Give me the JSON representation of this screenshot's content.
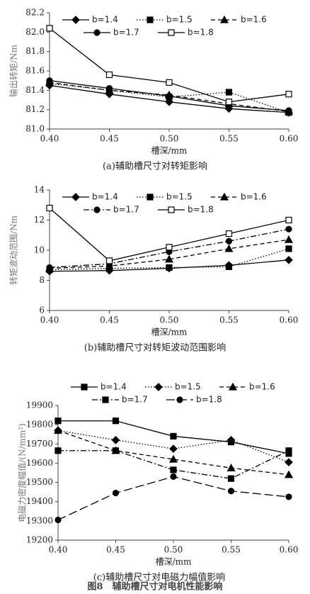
{
  "caption": "图8　辅助槽尺寸对电机性能影响",
  "chart_data": [
    {
      "type": "line",
      "caption": "(a)辅助槽尺寸对转矩影响",
      "xlabel": "槽深/mm",
      "ylabel": "输出转矩/Nm",
      "categories": [
        "0.40",
        "0.45",
        "0.50",
        "0.55",
        "0.60"
      ],
      "ylim": [
        81.0,
        82.2
      ],
      "yticks": [
        {
          "value": 81.0,
          "label": "81.0"
        },
        81.2,
        81.4,
        81.6,
        81.8,
        {
          "value": 82.0,
          "label": "82.0"
        },
        82.2
      ],
      "legend": "top",
      "series": [
        {
          "name": "b=1.4",
          "color": "#000000",
          "dash": "solid",
          "marker": "diamond",
          "values": [
            81.45,
            81.36,
            81.28,
            81.21,
            81.17
          ]
        },
        {
          "name": "b=1.5",
          "color": "#000000",
          "dash": "dotted",
          "marker": "square",
          "values": [
            81.47,
            81.4,
            81.33,
            81.38,
            81.17
          ]
        },
        {
          "name": "b=1.6",
          "color": "#000000",
          "dash": "dashed",
          "marker": "triangle",
          "values": [
            81.48,
            81.4,
            81.35,
            81.26,
            81.18
          ]
        },
        {
          "name": "b=1.7",
          "color": "#000000",
          "dash": "solid",
          "marker": "circle",
          "values": [
            81.5,
            81.42,
            81.34,
            81.24,
            81.19
          ]
        },
        {
          "name": "b=1.8",
          "color": "#000000",
          "dash": "solid",
          "marker": "open-square",
          "values": [
            82.04,
            81.56,
            81.48,
            81.28,
            81.36
          ]
        }
      ]
    },
    {
      "type": "line",
      "caption": "(b)辅助槽尺寸对转矩波动范围影响",
      "xlabel": "槽深/mm",
      "ylabel": "转矩波动范围/Nm",
      "categories": [
        "0.40",
        "0.45",
        "0.50",
        "0.55",
        "0.60"
      ],
      "ylim": [
        6,
        14
      ],
      "yticks": [
        6,
        8,
        10,
        12,
        14
      ],
      "legend": "top",
      "series": [
        {
          "name": "b=1.4",
          "color": "#000000",
          "dash": "solid",
          "marker": "diamond",
          "values": [
            8.6,
            8.65,
            8.8,
            9.0,
            9.35
          ]
        },
        {
          "name": "b=1.5",
          "color": "#000000",
          "dash": "dotted",
          "marker": "square",
          "values": [
            8.7,
            8.8,
            8.85,
            8.9,
            10.1
          ]
        },
        {
          "name": "b=1.6",
          "color": "#000000",
          "dash": "dashed",
          "marker": "triangle",
          "values": [
            8.8,
            8.95,
            9.4,
            10.1,
            10.7
          ]
        },
        {
          "name": "b=1.7",
          "color": "#000000",
          "dash": "dashdot",
          "marker": "circle",
          "values": [
            8.85,
            9.1,
            9.9,
            10.6,
            11.4
          ]
        },
        {
          "name": "b=1.8",
          "color": "#000000",
          "dash": "solid",
          "marker": "open-square",
          "values": [
            12.8,
            9.3,
            10.2,
            11.1,
            12.0
          ]
        }
      ]
    },
    {
      "type": "line",
      "caption": "(c)辅助槽尺寸对电磁力幅值影响",
      "xlabel": "槽深/mm",
      "ylabel": "电磁力密度幅值/(N/mm²)",
      "categories": [
        "0.40",
        "0.45",
        "0.50",
        "0.55",
        "0.60"
      ],
      "ylim": [
        19200,
        19900
      ],
      "yticks": [
        19200,
        19300,
        19400,
        19500,
        19600,
        19700,
        19800,
        19900
      ],
      "legend": "above",
      "series": [
        {
          "name": "b=1.4",
          "color": "#000000",
          "dash": "solid",
          "marker": "square",
          "values": [
            19820,
            19820,
            19740,
            19710,
            19650
          ]
        },
        {
          "name": "b=1.5",
          "color": "#000000",
          "dash": "dotted",
          "marker": "diamond",
          "values": [
            19770,
            19720,
            19675,
            19720,
            19605
          ]
        },
        {
          "name": "b=1.6",
          "color": "#000000",
          "dash": "dashed",
          "marker": "triangle",
          "values": [
            19770,
            19665,
            19620,
            19575,
            19540
          ]
        },
        {
          "name": "b=1.7",
          "color": "#000000",
          "dash": "dashdot",
          "marker": "square",
          "values": [
            19665,
            19665,
            19565,
            19520,
            19665
          ]
        },
        {
          "name": "b=1.8",
          "color": "#000000",
          "dash": "longdash",
          "marker": "circle",
          "values": [
            19305,
            19445,
            19530,
            19455,
            19425
          ]
        }
      ]
    }
  ]
}
